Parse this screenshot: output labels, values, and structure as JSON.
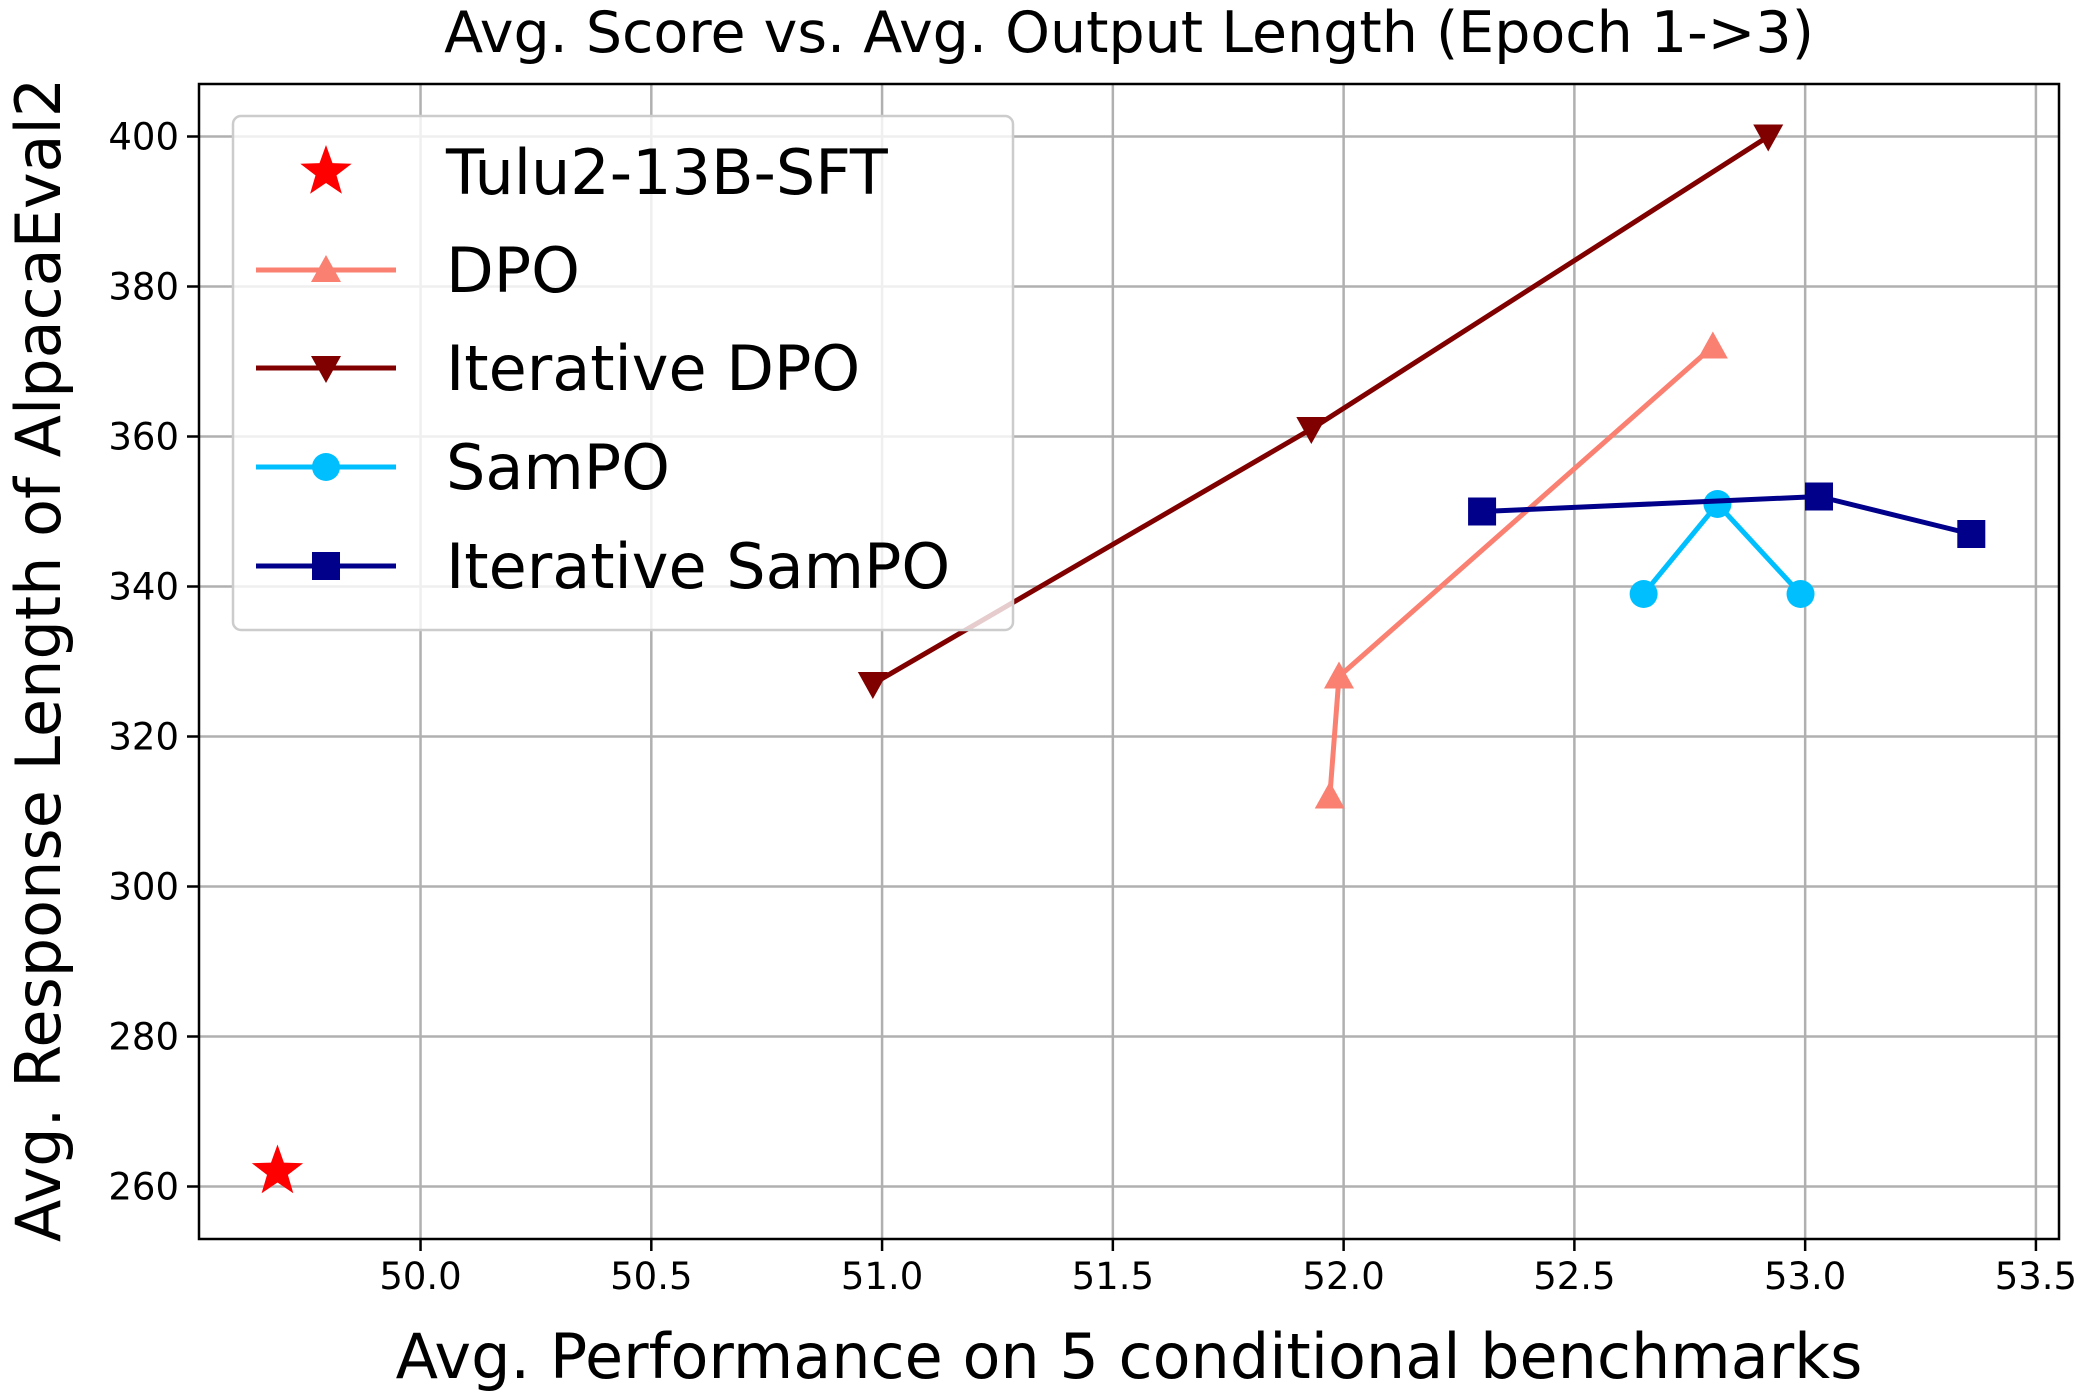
{
  "chart_data": {
    "type": "line",
    "title": "Avg. Score vs. Avg. Output Length (Epoch 1->3)",
    "xlabel": "Avg. Performance on 5 conditional benchmarks",
    "ylabel": "Avg. Response Length of AlpacaEval2",
    "xlim": [
      49.52,
      53.55
    ],
    "ylim": [
      253,
      407
    ],
    "xticks": [
      50.0,
      50.5,
      51.0,
      51.5,
      52.0,
      52.5,
      53.0,
      53.5
    ],
    "xtick_labels": [
      "50.0",
      "50.5",
      "51.0",
      "51.5",
      "52.0",
      "52.5",
      "53.0",
      "53.5"
    ],
    "yticks": [
      260,
      280,
      300,
      320,
      340,
      360,
      380,
      400
    ],
    "ytick_labels": [
      "260",
      "280",
      "300",
      "320",
      "340",
      "360",
      "380",
      "400"
    ],
    "grid": true,
    "legend_position": "upper-left",
    "series": [
      {
        "name": "Tulu2-13B-SFT",
        "color": "#ff0000",
        "marker": "star",
        "line": false,
        "x": [
          49.69
        ],
        "y": [
          262
        ]
      },
      {
        "name": "DPO",
        "color": "#fa8072",
        "marker": "triangle-up",
        "line": true,
        "x": [
          51.97,
          51.99,
          52.8
        ],
        "y": [
          312,
          328,
          372
        ]
      },
      {
        "name": "Iterative DPO",
        "color": "#800000",
        "marker": "triangle-down",
        "line": true,
        "x": [
          50.98,
          51.93,
          52.92
        ],
        "y": [
          327,
          361,
          400
        ]
      },
      {
        "name": "SamPO",
        "color": "#00bfff",
        "marker": "circle",
        "line": true,
        "x": [
          52.65,
          52.81,
          52.99
        ],
        "y": [
          339,
          351,
          339
        ]
      },
      {
        "name": "Iterative SamPO",
        "color": "#00008b",
        "marker": "square",
        "line": true,
        "x": [
          52.3,
          53.03,
          53.36
        ],
        "y": [
          350,
          352,
          347
        ]
      }
    ]
  }
}
